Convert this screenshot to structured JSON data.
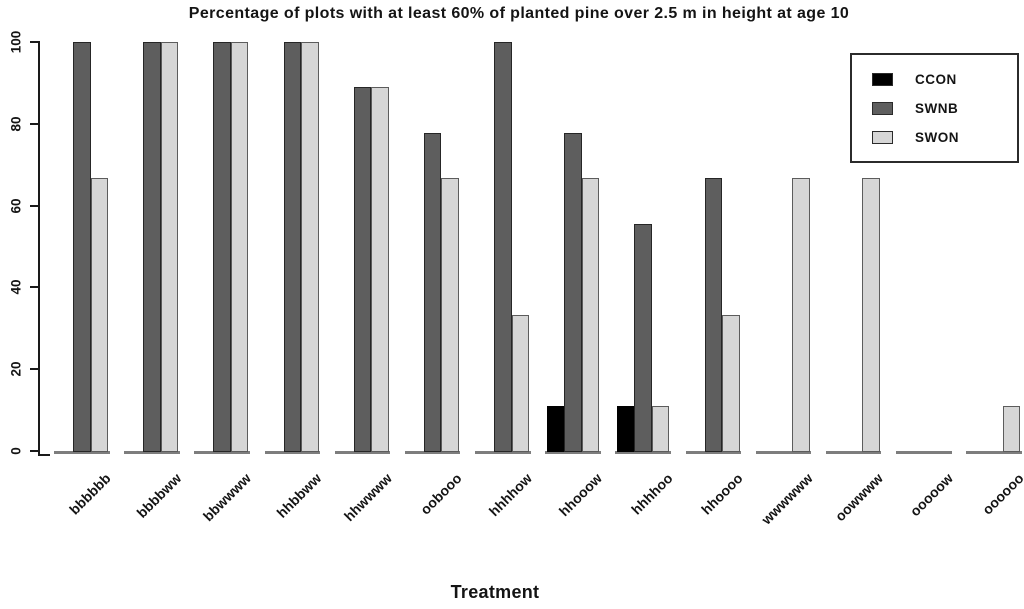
{
  "chart_data": {
    "type": "bar",
    "title": "Percentage of plots with at least 60% of planted pine over 2.5 m in height at age 10",
    "xlabel": "Treatment",
    "ylabel": "",
    "ylim": [
      0,
      100
    ],
    "yticks": [
      0,
      20,
      40,
      60,
      80,
      100
    ],
    "grid": false,
    "legend_position": "top-right",
    "categories": [
      "bbbbbb",
      "bbbbww",
      "bbwwww",
      "hhbbww",
      "hhwwww",
      "oobooo",
      "hhhhow",
      "hhooow",
      "hhhhoo",
      "hhoooo",
      "wwwwww",
      "oowwww",
      "ooooow",
      "oooooo"
    ],
    "series": [
      {
        "name": "CCON",
        "fill": "#000000",
        "border": "#000000",
        "values": [
          0,
          0,
          0,
          0,
          0,
          0,
          0,
          11.1,
          11.1,
          0,
          0,
          0,
          0,
          0
        ]
      },
      {
        "name": "SWNB",
        "fill": "#5e5e5e",
        "border": "#262626",
        "values": [
          100,
          100,
          100,
          100,
          88.9,
          77.8,
          100,
          77.8,
          55.6,
          66.7,
          0,
          0,
          0,
          0
        ]
      },
      {
        "name": "SWON",
        "fill": "#d6d6d6",
        "border": "#5c5c5c",
        "values": [
          66.7,
          100,
          100,
          100,
          88.9,
          66.7,
          33.3,
          66.7,
          11.1,
          33.3,
          66.7,
          66.7,
          0,
          11.1
        ]
      }
    ],
    "colors": {
      "axis": "#1a1a1a",
      "baseline": "#7d7d7d",
      "background": "#ffffff"
    }
  }
}
